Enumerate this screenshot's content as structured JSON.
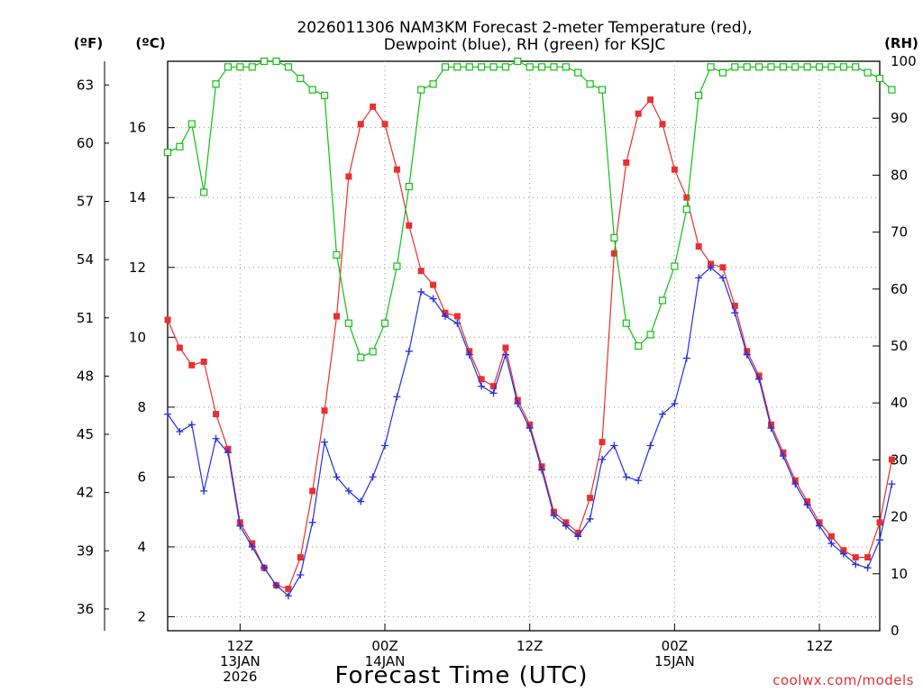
{
  "chart_data": {
    "type": "line",
    "title": [
      "2026011306 NAM3KM Forecast 2-meter Temperature (red),",
      "Dewpoint (blue), RH (green) for KSJC"
    ],
    "xlabel": "Forecast Time (UTC)",
    "credit": "coolwx.com/models",
    "units": {
      "fahrenheit": "(ºF)",
      "celsius": "(ºC)",
      "rh": "(RH)"
    },
    "x_range_hours": [
      0,
      59
    ],
    "x_ticks": [
      {
        "hour": 6,
        "lines": [
          "12Z",
          "13JAN",
          "2026"
        ]
      },
      {
        "hour": 18,
        "lines": [
          "00Z",
          "14JAN"
        ]
      },
      {
        "hour": 30,
        "lines": [
          "12Z"
        ]
      },
      {
        "hour": 42,
        "lines": [
          "00Z",
          "15JAN"
        ]
      },
      {
        "hour": 54,
        "lines": [
          "12Z"
        ]
      }
    ],
    "celsius_axis": {
      "min": 1.6,
      "max": 17.9,
      "ticks": [
        2,
        4,
        6,
        8,
        10,
        12,
        14,
        16
      ]
    },
    "fahrenheit_ticks": [
      36,
      39,
      42,
      45,
      48,
      51,
      54,
      57,
      60,
      63
    ],
    "rh_axis": {
      "min": 0,
      "max": 100,
      "ticks": [
        0,
        10,
        20,
        30,
        40,
        50,
        60,
        70,
        80,
        90,
        100
      ]
    },
    "series": [
      {
        "name": "Temperature (°C)",
        "axis": "celsius",
        "color": "#e83030",
        "marker": "filled-square",
        "values": [
          10.5,
          9.7,
          9.2,
          9.3,
          7.8,
          6.8,
          4.7,
          4.1,
          3.4,
          2.9,
          2.8,
          3.7,
          5.6,
          7.9,
          10.6,
          14.6,
          16.1,
          16.6,
          16.1,
          14.8,
          13.2,
          11.9,
          11.5,
          10.7,
          10.6,
          9.6,
          8.8,
          8.6,
          9.7,
          8.2,
          7.5,
          6.3,
          5.0,
          4.7,
          4.4,
          5.4,
          7.0,
          12.4,
          15.0,
          16.4,
          16.8,
          16.1,
          14.8,
          14.0,
          12.6,
          12.1,
          12.0,
          10.9,
          9.6,
          8.9,
          7.5,
          6.7,
          5.9,
          5.3,
          4.7,
          4.3,
          3.9,
          3.7,
          3.7,
          4.7,
          6.5
        ]
      },
      {
        "name": "Dewpoint (°C)",
        "axis": "celsius",
        "color": "#2030e0",
        "marker": "plus",
        "values": [
          7.8,
          7.3,
          7.5,
          5.6,
          7.1,
          6.7,
          4.6,
          4.0,
          3.4,
          2.9,
          2.6,
          3.2,
          4.7,
          7.0,
          6.0,
          5.6,
          5.3,
          6.0,
          6.9,
          8.3,
          9.6,
          11.3,
          11.1,
          10.6,
          10.4,
          9.5,
          8.6,
          8.4,
          9.5,
          8.1,
          7.4,
          6.2,
          4.9,
          4.6,
          4.3,
          4.8,
          6.5,
          6.9,
          6.0,
          5.9,
          6.9,
          7.8,
          8.1,
          9.4,
          11.7,
          12.0,
          11.7,
          10.7,
          9.5,
          8.8,
          7.4,
          6.6,
          5.8,
          5.2,
          4.6,
          4.1,
          3.8,
          3.5,
          3.4,
          4.2,
          5.8
        ]
      },
      {
        "name": "Relative Humidity (%)",
        "axis": "rh",
        "color": "#10c010",
        "marker": "open-square",
        "values": [
          84,
          85,
          89,
          77,
          96,
          99,
          99,
          99,
          100,
          100,
          99,
          97,
          95,
          94,
          66,
          54,
          48,
          49,
          54,
          64,
          78,
          95,
          96,
          99,
          99,
          99,
          99,
          99,
          99,
          100,
          99,
          99,
          99,
          99,
          98,
          96,
          95,
          69,
          54,
          50,
          52,
          58,
          64,
          74,
          94,
          99,
          98,
          99,
          99,
          99,
          99,
          99,
          99,
          99,
          99,
          99,
          99,
          99,
          98,
          97,
          95
        ]
      }
    ]
  }
}
